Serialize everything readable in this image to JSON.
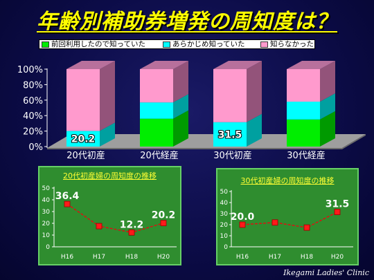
{
  "slide": {
    "title": "年齢別補助券増発の周知度は？",
    "footer": "Ikegami Ladies' Clinic"
  },
  "theme": {
    "title_color": "#ffff00",
    "floor_color": "#9e9e9e",
    "floor_edge_color": "#6a6a6a",
    "axis_color": "#ffffff",
    "panel_color": "#2f8d2f",
    "panel_title_color": "#ffff33",
    "line_color": "#dd1111",
    "marker_color": "#ff1a1a"
  },
  "chart_data": [
    {
      "type": "bar",
      "stacked": true,
      "three_d": true,
      "categories": [
        "20代初産",
        "20代経産",
        "30代初産",
        "30代経産"
      ],
      "series": [
        {
          "name": "前回利用したので知っていた",
          "values": [
            0,
            36,
            0,
            35
          ],
          "color": "#00ee00",
          "side_color": "#009a00",
          "top_color": "#00c800",
          "show_labels": [
            false,
            false,
            false,
            false
          ]
        },
        {
          "name": "あらかじめ知っていた",
          "values": [
            20.2,
            21,
            31.5,
            23
          ],
          "color": "#00ffff",
          "side_color": "#00a0a0",
          "top_color": "#00d0d0",
          "show_labels": [
            true,
            false,
            true,
            false
          ]
        },
        {
          "name": "知らなかった",
          "values": [
            79.8,
            43,
            68.5,
            42
          ],
          "color": "#ff9acd",
          "side_color": "#93537a",
          "top_color": "#b8709c",
          "show_labels": [
            false,
            false,
            false,
            false
          ]
        }
      ],
      "ylim": [
        0,
        100
      ],
      "yticks": [
        "0%",
        "20%",
        "40%",
        "60%",
        "80%",
        "100%"
      ],
      "legend": "top",
      "grid": false
    },
    {
      "type": "line",
      "title": "20代初産婦の周知度の推移",
      "x": [
        "H16",
        "H17",
        "H18",
        "H20"
      ],
      "series": [
        {
          "values": [
            36.4,
            17.6,
            12.2,
            20.2
          ],
          "show_labels": [
            true,
            false,
            true,
            true
          ]
        }
      ],
      "ylim": [
        0,
        50
      ],
      "yticks": [
        "0",
        "10",
        "20",
        "30",
        "40",
        "50"
      ],
      "grid": false
    },
    {
      "type": "line",
      "title": "30代初産婦の周知度の推移",
      "x": [
        "H16",
        "H17",
        "H18",
        "H20"
      ],
      "series": [
        {
          "values": [
            20.0,
            22.0,
            17.4,
            31.5
          ],
          "show_labels": [
            true,
            false,
            false,
            true
          ]
        }
      ],
      "ylim": [
        0,
        50
      ],
      "yticks": [
        "0",
        "10",
        "20",
        "30",
        "40",
        "50"
      ],
      "grid": false
    }
  ]
}
